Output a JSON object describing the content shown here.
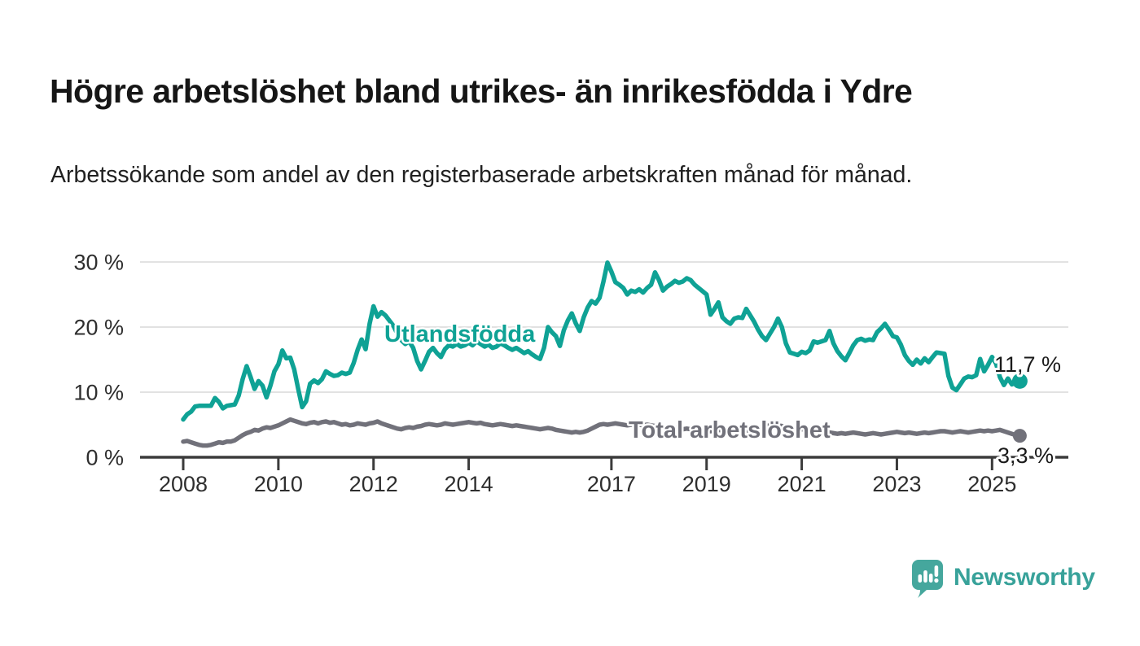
{
  "header": {
    "title": "Högre arbetslöshet bland utrikes- än inrikesfödda i Ydre",
    "subtitle": "Arbetssökande som andel av den registerbaserade arbetskraften månad för månad."
  },
  "footer": {
    "brand": "Newsworthy"
  },
  "colors": {
    "series_teal": "#0fa295",
    "series_gray": "#71717a",
    "gridline": "#d8d8d8",
    "axis": "#3b3b3b",
    "tick_text": "#2e2e2e",
    "value_label_text": "#1a1a1a",
    "logo_teal": "#45a79d",
    "title_text": "#161616"
  },
  "chart_data": {
    "type": "line",
    "unit": "%",
    "frequency": "monthly",
    "start": "2008-01",
    "end": "2025-08",
    "title": "Högre arbetslöshet bland utrikes- än inrikesfödda i Ydre",
    "subtitle": "Arbetssökande som andel av den registerbaserade arbetskraften månad för månad.",
    "grid": true,
    "legend_position": "inline-labels",
    "y_axis": {
      "range": [
        0,
        30
      ],
      "ticks": [
        {
          "value": 0,
          "label": "0 %"
        },
        {
          "value": 10,
          "label": "10 %"
        },
        {
          "value": 20,
          "label": "20 %"
        },
        {
          "value": 30,
          "label": "30 %"
        }
      ]
    },
    "x_axis": {
      "ticks": [
        {
          "year": 2008,
          "label": "2008"
        },
        {
          "year": 2010,
          "label": "2010"
        },
        {
          "year": 2012,
          "label": "2012"
        },
        {
          "year": 2014,
          "label": "2014"
        },
        {
          "year": 2017,
          "label": "2017"
        },
        {
          "year": 2019,
          "label": "2019"
        },
        {
          "year": 2021,
          "label": "2021"
        },
        {
          "year": 2023,
          "label": "2023"
        },
        {
          "year": 2025,
          "label": "2025"
        }
      ]
    },
    "series": [
      {
        "name": "Utlandsfödda",
        "color": "#0fa295",
        "end_label": "11,7 %",
        "end_value": 11.7,
        "values": [
          5.8,
          6.6,
          7.0,
          7.8,
          7.9,
          7.9,
          7.9,
          7.9,
          9.1,
          8.5,
          7.5,
          7.9,
          8.0,
          8.1,
          9.5,
          12.0,
          14.0,
          12.3,
          10.5,
          11.7,
          11.0,
          9.2,
          11.0,
          13.2,
          14.3,
          16.4,
          15.2,
          15.3,
          13.5,
          10.5,
          7.7,
          8.6,
          11.3,
          11.8,
          11.4,
          12.0,
          13.2,
          12.8,
          12.5,
          12.6,
          13.0,
          12.8,
          13.0,
          14.5,
          16.5,
          18.1,
          16.6,
          20.5,
          23.2,
          21.6,
          22.3,
          21.8,
          21.0,
          20.2,
          19.0,
          18.0,
          17.4,
          17.8,
          16.8,
          14.8,
          13.5,
          14.8,
          16.2,
          16.8,
          16.0,
          15.4,
          16.6,
          17.2,
          17.0,
          17.4,
          17.0,
          17.2,
          17.6,
          17.2,
          17.8,
          17.4,
          17.0,
          17.3,
          16.8,
          17.0,
          17.5,
          17.2,
          16.8,
          16.5,
          16.8,
          16.4,
          16.0,
          16.3,
          15.8,
          15.4,
          15.1,
          16.8,
          20.0,
          19.2,
          18.6,
          17.1,
          19.5,
          21.0,
          22.1,
          20.6,
          19.4,
          21.5,
          23.0,
          24.0,
          23.6,
          24.5,
          27.0,
          29.9,
          28.5,
          26.9,
          26.5,
          26.0,
          25.0,
          25.6,
          25.4,
          25.8,
          25.3,
          26.0,
          26.5,
          28.4,
          27.2,
          25.6,
          26.2,
          26.6,
          27.1,
          26.8,
          27.0,
          27.5,
          27.2,
          26.5,
          26.0,
          25.5,
          25.0,
          21.9,
          22.8,
          23.8,
          21.5,
          20.9,
          20.5,
          21.3,
          21.5,
          21.4,
          22.8,
          21.8,
          20.8,
          19.6,
          18.6,
          18.0,
          19.0,
          20.0,
          21.3,
          20.0,
          17.5,
          16.1,
          15.9,
          15.7,
          16.2,
          16.0,
          16.4,
          17.8,
          17.6,
          17.8,
          18.0,
          19.4,
          17.5,
          16.3,
          15.5,
          14.9,
          16.0,
          17.2,
          18.0,
          18.2,
          17.9,
          18.1,
          18.0,
          19.2,
          19.8,
          20.5,
          19.6,
          18.6,
          18.4,
          17.3,
          15.7,
          14.8,
          14.2,
          15.0,
          14.4,
          15.2,
          14.6,
          15.4,
          16.1,
          16.0,
          15.9,
          12.5,
          10.7,
          10.3,
          11.2,
          12.1,
          12.4,
          12.3,
          12.6,
          15.1,
          13.2,
          14.2,
          15.4,
          14.4,
          12.3,
          11.1,
          12.1,
          11.2,
          11.5,
          11.7
        ]
      },
      {
        "name": "Total arbetslöshet",
        "color": "#71717a",
        "end_label": "3,3 %",
        "end_value": 3.3,
        "values": [
          2.4,
          2.5,
          2.3,
          2.1,
          1.9,
          1.8,
          1.8,
          1.9,
          2.1,
          2.3,
          2.2,
          2.4,
          2.4,
          2.6,
          3.0,
          3.4,
          3.7,
          3.9,
          4.2,
          4.1,
          4.4,
          4.6,
          4.5,
          4.7,
          4.9,
          5.2,
          5.5,
          5.8,
          5.6,
          5.4,
          5.2,
          5.1,
          5.3,
          5.4,
          5.2,
          5.4,
          5.5,
          5.3,
          5.4,
          5.2,
          5.0,
          5.1,
          4.9,
          5.0,
          5.2,
          5.1,
          5.0,
          5.2,
          5.3,
          5.5,
          5.2,
          5.0,
          4.8,
          4.6,
          4.4,
          4.3,
          4.5,
          4.6,
          4.5,
          4.7,
          4.8,
          5.0,
          5.1,
          5.0,
          4.9,
          5.0,
          5.2,
          5.1,
          5.0,
          5.1,
          5.2,
          5.3,
          5.4,
          5.3,
          5.2,
          5.3,
          5.1,
          5.0,
          4.9,
          5.0,
          5.1,
          5.0,
          4.9,
          4.8,
          4.9,
          4.8,
          4.7,
          4.6,
          4.5,
          4.4,
          4.3,
          4.4,
          4.5,
          4.4,
          4.2,
          4.1,
          4.0,
          3.9,
          3.8,
          3.9,
          3.8,
          3.9,
          4.1,
          4.4,
          4.7,
          5.0,
          5.1,
          5.0,
          5.1,
          5.2,
          5.1,
          5.0,
          4.9,
          5.0,
          5.1,
          5.0,
          4.9,
          5.0,
          4.9,
          4.8,
          4.7,
          4.6,
          4.5,
          4.6,
          4.5,
          4.4,
          4.3,
          4.4,
          4.3,
          4.2,
          4.3,
          4.2,
          4.1,
          4.0,
          4.1,
          4.2,
          4.1,
          4.0,
          3.9,
          4.0,
          4.1,
          4.0,
          4.1,
          4.2,
          4.3,
          4.4,
          4.6,
          4.8,
          4.9,
          5.0,
          4.9,
          4.8,
          4.6,
          4.4,
          4.3,
          4.2,
          4.3,
          4.2,
          4.1,
          4.0,
          3.9,
          3.8,
          3.9,
          3.8,
          3.7,
          3.6,
          3.7,
          3.6,
          3.7,
          3.8,
          3.7,
          3.6,
          3.5,
          3.6,
          3.7,
          3.6,
          3.5,
          3.6,
          3.7,
          3.8,
          3.9,
          3.8,
          3.7,
          3.8,
          3.7,
          3.6,
          3.7,
          3.8,
          3.7,
          3.8,
          3.9,
          4.0,
          4.0,
          3.9,
          3.8,
          3.9,
          4.0,
          3.9,
          3.8,
          3.9,
          4.0,
          4.1,
          4.0,
          4.1,
          4.0,
          4.1,
          4.2,
          4.0,
          3.8,
          3.6,
          3.4,
          3.3
        ]
      }
    ]
  }
}
